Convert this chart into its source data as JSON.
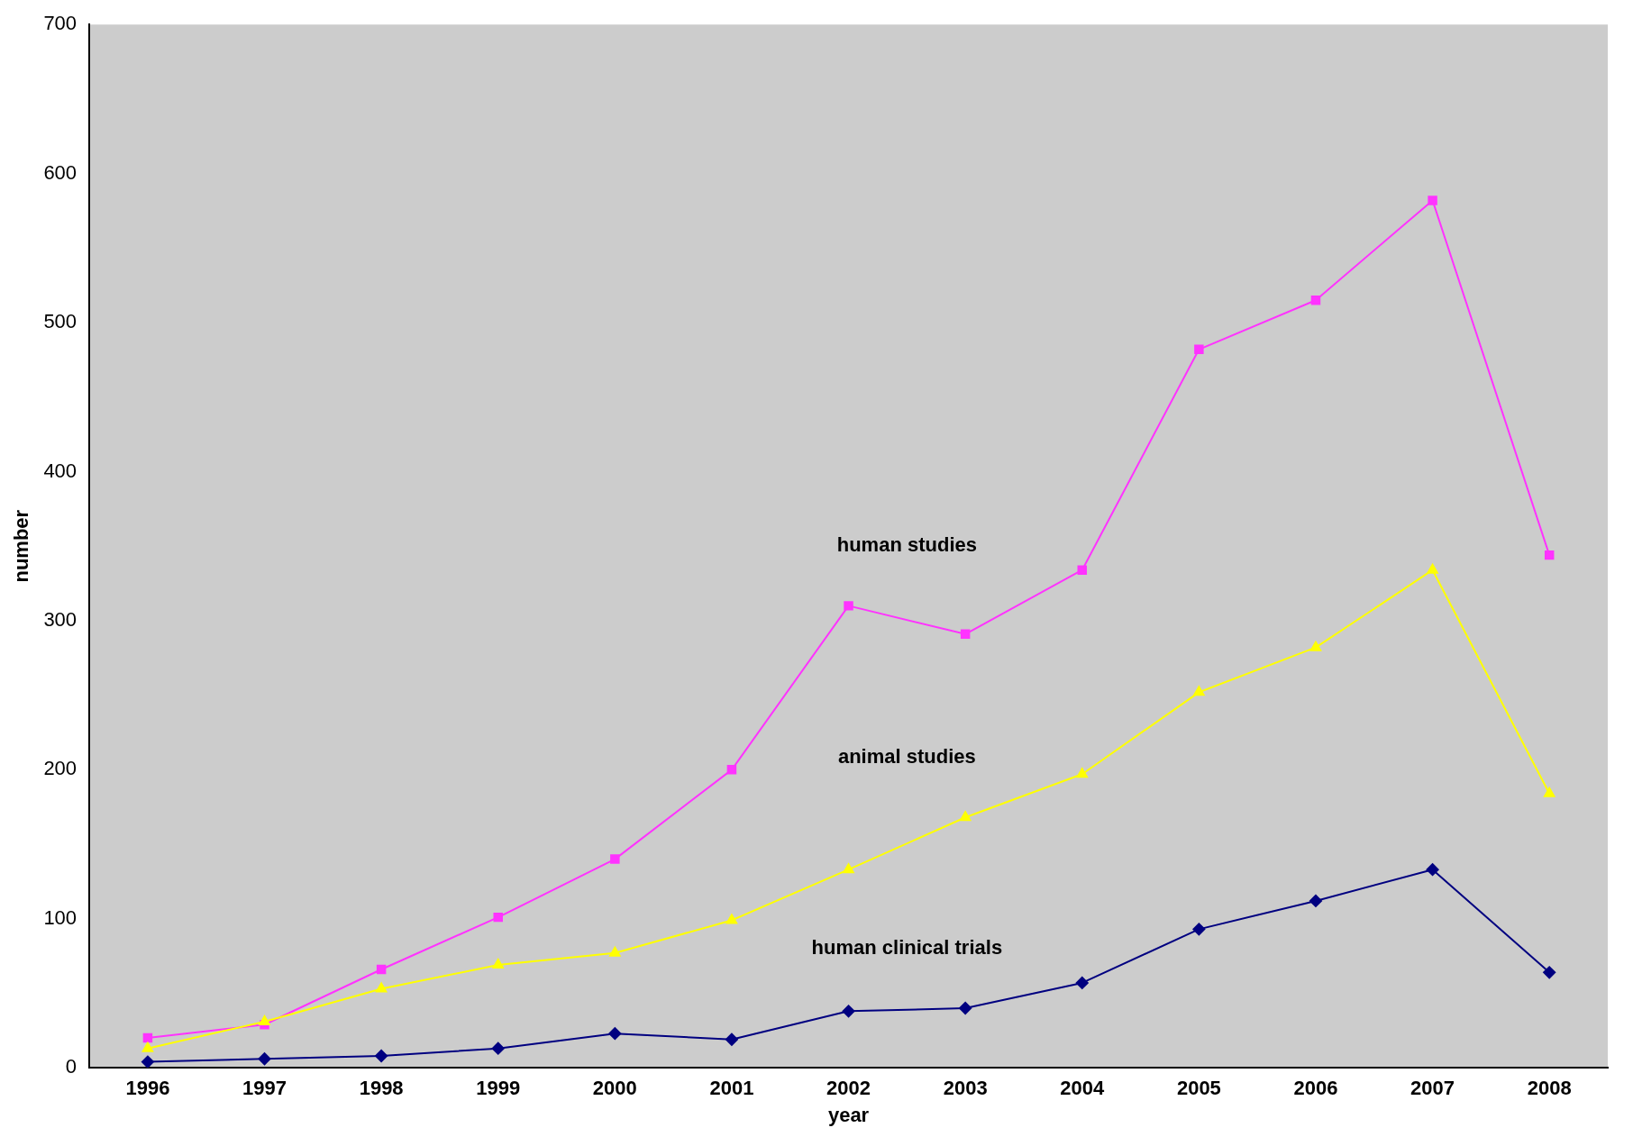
{
  "chart_data": {
    "type": "line",
    "xlabel": "year",
    "ylabel": "number",
    "categories": [
      "1996",
      "1997",
      "1998",
      "1999",
      "2000",
      "2001",
      "2002",
      "2003",
      "2004",
      "2005",
      "2006",
      "2007",
      "2008"
    ],
    "series": [
      {
        "name": "animal studies",
        "color": "#ffff00",
        "marker": "triangle",
        "values": [
          13,
          31,
          53,
          69,
          77,
          99,
          133,
          168,
          197,
          252,
          282,
          334,
          184
        ]
      },
      {
        "name": "human studies",
        "color": "#ff33ff",
        "marker": "square",
        "values": [
          20,
          29,
          66,
          101,
          140,
          200,
          310,
          291,
          334,
          482,
          515,
          582,
          344
        ]
      },
      {
        "name": "human clinical trials",
        "color": "#000080",
        "marker": "diamond",
        "values": [
          4,
          6,
          8,
          13,
          23,
          19,
          38,
          40,
          57,
          93,
          112,
          133,
          64
        ]
      }
    ],
    "ylim": [
      0,
      700
    ],
    "yticks": [
      0,
      100,
      200,
      300,
      400,
      500,
      600,
      700
    ],
    "grid": false,
    "legend": false,
    "line_style": "solid"
  }
}
